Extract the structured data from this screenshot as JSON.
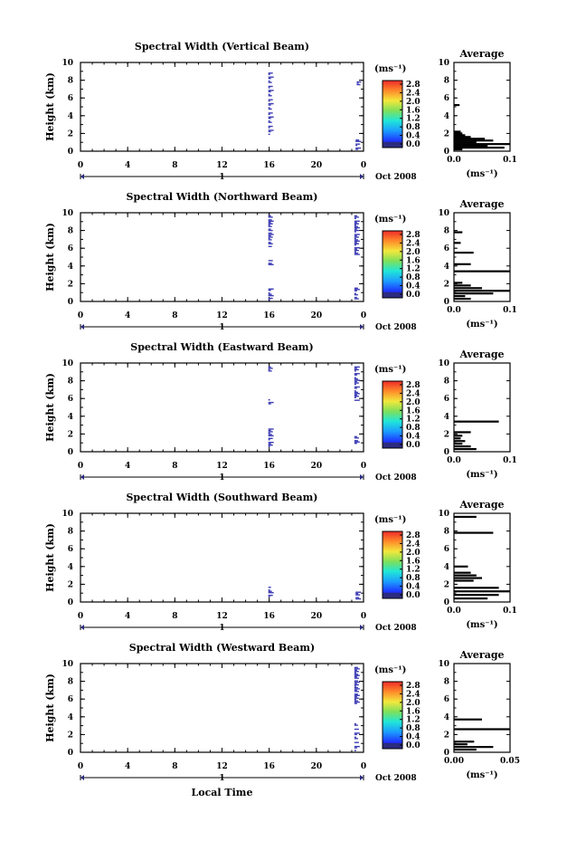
{
  "chart_data": [
    {
      "type": "heatmap",
      "title": "Spectral Width (Vertical Beam)",
      "ylabel": "Height (km)",
      "xlim": [
        0,
        24
      ],
      "ylim": [
        0,
        10
      ],
      "x_ticks": [
        "0",
        "4",
        "8",
        "12",
        "16",
        "20",
        "0"
      ],
      "y_ticks": [
        "0",
        "2",
        "4",
        "6",
        "8",
        "10"
      ],
      "date_marker": "1",
      "date_label": "Oct 2008",
      "colorbar": {
        "units": "(ms⁻¹)",
        "ticks": [
          "0.0",
          "0.4",
          "0.8",
          "1.2",
          "1.6",
          "2.0",
          "2.4",
          "2.8"
        ]
      },
      "cells": [
        {
          "x": 16.0,
          "y0": 1.9,
          "y1": 9.1,
          "density": 0.55
        },
        {
          "x": 23.4,
          "y0": 0.2,
          "y1": 1.4,
          "density": 0.6
        },
        {
          "x": 23.5,
          "y0": 7.5,
          "y1": 7.8,
          "density": 1.0
        }
      ],
      "average": {
        "title": "Average",
        "xlabel": "(ms⁻¹)",
        "xlim": [
          0,
          0.1
        ],
        "x_ticks": [
          "0.0",
          "0.1"
        ],
        "ylim": [
          0,
          10
        ],
        "y_ticks": [
          "0",
          "2",
          "4",
          "6",
          "8",
          "10"
        ],
        "profile": [
          [
            0.2,
            0.015
          ],
          [
            0.4,
            0.09
          ],
          [
            0.6,
            0.06
          ],
          [
            0.8,
            0.1
          ],
          [
            1.0,
            0.04
          ],
          [
            1.2,
            0.07
          ],
          [
            1.4,
            0.055
          ],
          [
            1.6,
            0.03
          ],
          [
            1.8,
            0.02
          ],
          [
            2.0,
            0.015
          ],
          [
            2.2,
            0.012
          ],
          [
            5.2,
            0.01
          ]
        ]
      }
    },
    {
      "type": "heatmap",
      "title": "Spectral Width (Northward Beam)",
      "ylabel": "Height (km)",
      "xlim": [
        0,
        24
      ],
      "ylim": [
        0,
        10
      ],
      "x_ticks": [
        "0",
        "4",
        "8",
        "12",
        "16",
        "20",
        "0"
      ],
      "y_ticks": [
        "0",
        "2",
        "4",
        "6",
        "8",
        "10"
      ],
      "date_marker": "1",
      "date_label": "Oct 2008",
      "colorbar": {
        "units": "(ms⁻¹)",
        "ticks": [
          "0.0",
          "0.4",
          "0.8",
          "1.2",
          "1.6",
          "2.0",
          "2.4",
          "2.8"
        ]
      },
      "cells": [
        {
          "x": 16.0,
          "y0": 0.2,
          "y1": 1.4,
          "density": 0.7
        },
        {
          "x": 16.0,
          "y0": 4.0,
          "y1": 4.6,
          "density": 0.7
        },
        {
          "x": 16.0,
          "y0": 6.2,
          "y1": 9.8,
          "density": 0.75
        },
        {
          "x": 23.3,
          "y0": 0.3,
          "y1": 1.5,
          "density": 0.7
        },
        {
          "x": 23.3,
          "y0": 5.3,
          "y1": 9.6,
          "density": 0.85
        }
      ],
      "average": {
        "title": "Average",
        "xlabel": "(ms⁻¹)",
        "xlim": [
          0,
          0.1
        ],
        "x_ticks": [
          "0.0",
          "0.1"
        ],
        "ylim": [
          0,
          10
        ],
        "y_ticks": [
          "0",
          "2",
          "4",
          "6",
          "8",
          "10"
        ],
        "profile": [
          [
            0.3,
            0.03
          ],
          [
            0.6,
            0.02
          ],
          [
            0.9,
            0.07
          ],
          [
            1.2,
            0.1
          ],
          [
            1.5,
            0.05
          ],
          [
            1.8,
            0.03
          ],
          [
            2.1,
            0.015
          ],
          [
            3.4,
            0.1
          ],
          [
            4.2,
            0.03
          ],
          [
            5.5,
            0.035
          ],
          [
            6.6,
            0.012
          ],
          [
            7.8,
            0.015
          ]
        ]
      }
    },
    {
      "type": "heatmap",
      "title": "Spectral Width (Eastward Beam)",
      "ylabel": "Height (km)",
      "xlim": [
        0,
        24
      ],
      "ylim": [
        0,
        10
      ],
      "x_ticks": [
        "0",
        "4",
        "8",
        "12",
        "16",
        "20",
        "0"
      ],
      "y_ticks": [
        "0",
        "2",
        "4",
        "6",
        "8",
        "10"
      ],
      "date_marker": "1",
      "date_label": "Oct 2008",
      "colorbar": {
        "units": "(ms⁻¹)",
        "ticks": [
          "0.0",
          "0.4",
          "0.8",
          "1.2",
          "1.6",
          "2.0",
          "2.4",
          "2.8"
        ]
      },
      "cells": [
        {
          "x": 16.0,
          "y0": 0.6,
          "y1": 2.6,
          "density": 0.75
        },
        {
          "x": 16.0,
          "y0": 5.4,
          "y1": 5.9,
          "density": 0.7
        },
        {
          "x": 16.0,
          "y0": 9.1,
          "y1": 9.6,
          "density": 1.0
        },
        {
          "x": 23.3,
          "y0": 0.8,
          "y1": 1.7,
          "density": 0.7
        },
        {
          "x": 23.3,
          "y0": 5.8,
          "y1": 9.6,
          "density": 0.8
        }
      ],
      "average": {
        "title": "Average",
        "xlabel": "(ms⁻¹)",
        "xlim": [
          0,
          0.1
        ],
        "x_ticks": [
          "0.0",
          "0.1"
        ],
        "ylim": [
          0,
          10
        ],
        "y_ticks": [
          "0",
          "2",
          "4",
          "6",
          "8",
          "10"
        ],
        "profile": [
          [
            0.3,
            0.04
          ],
          [
            0.6,
            0.03
          ],
          [
            0.9,
            0.015
          ],
          [
            1.2,
            0.02
          ],
          [
            1.5,
            0.012
          ],
          [
            1.8,
            0.015
          ],
          [
            2.2,
            0.03
          ],
          [
            3.4,
            0.08
          ]
        ]
      }
    },
    {
      "type": "heatmap",
      "title": "Spectral Width (Southward Beam)",
      "ylabel": "Height (km)",
      "xlim": [
        0,
        24
      ],
      "ylim": [
        0,
        10
      ],
      "x_ticks": [
        "0",
        "4",
        "8",
        "12",
        "16",
        "20",
        "0"
      ],
      "y_ticks": [
        "0",
        "2",
        "4",
        "6",
        "8",
        "10"
      ],
      "date_marker": "1",
      "date_label": "Oct 2008",
      "colorbar": {
        "units": "(ms⁻¹)",
        "ticks": [
          "0.0",
          "0.4",
          "0.8",
          "1.2",
          "1.6",
          "2.0",
          "2.4",
          "2.8"
        ]
      },
      "cells": [
        {
          "x": 16.0,
          "y0": 0.6,
          "y1": 1.6,
          "density": 0.7
        },
        {
          "x": 23.4,
          "y0": 0.2,
          "y1": 1.3,
          "density": 0.7
        }
      ],
      "average": {
        "title": "Average",
        "xlabel": "(ms⁻¹)",
        "xlim": [
          0,
          0.1
        ],
        "x_ticks": [
          "0.0",
          "0.1"
        ],
        "ylim": [
          0,
          10
        ],
        "y_ticks": [
          "0",
          "2",
          "4",
          "6",
          "8",
          "10"
        ],
        "profile": [
          [
            0.4,
            0.06
          ],
          [
            0.8,
            0.08
          ],
          [
            1.2,
            0.1
          ],
          [
            1.6,
            0.08
          ],
          [
            2.4,
            0.035
          ],
          [
            2.7,
            0.05
          ],
          [
            3.0,
            0.04
          ],
          [
            3.3,
            0.03
          ],
          [
            4.0,
            0.025
          ],
          [
            7.8,
            0.07
          ],
          [
            9.6,
            0.04
          ]
        ]
      }
    },
    {
      "type": "heatmap",
      "title": "Spectral Width (Westward Beam)",
      "ylabel": "Height (km)",
      "xlim": [
        0,
        24
      ],
      "ylim": [
        0,
        10
      ],
      "x_ticks": [
        "0",
        "4",
        "8",
        "12",
        "16",
        "20",
        "0"
      ],
      "y_ticks": [
        "0",
        "2",
        "4",
        "6",
        "8",
        "10"
      ],
      "date_marker": "1",
      "date_label": "Oct 2008",
      "xlabel": "Local Time",
      "colorbar": {
        "units": "(ms⁻¹)",
        "ticks": [
          "0.0",
          "0.4",
          "0.8",
          "1.2",
          "1.6",
          "2.0",
          "2.4",
          "2.8"
        ]
      },
      "cells": [
        {
          "x": 23.3,
          "y0": 0.2,
          "y1": 3.3,
          "density": 0.45
        },
        {
          "x": 23.3,
          "y0": 5.5,
          "y1": 9.6,
          "density": 0.85
        }
      ],
      "average": {
        "title": "Average",
        "xlabel": "(ms⁻¹)",
        "xlim": [
          0,
          0.05
        ],
        "x_ticks": [
          "0.00",
          "0.05"
        ],
        "ylim": [
          0,
          10
        ],
        "y_ticks": [
          "0",
          "2",
          "4",
          "6",
          "8",
          "10"
        ],
        "profile": [
          [
            0.3,
            0.02
          ],
          [
            0.6,
            0.035
          ],
          [
            0.9,
            0.012
          ],
          [
            1.2,
            0.018
          ],
          [
            2.6,
            0.05
          ],
          [
            3.7,
            0.025
          ]
        ]
      }
    }
  ]
}
